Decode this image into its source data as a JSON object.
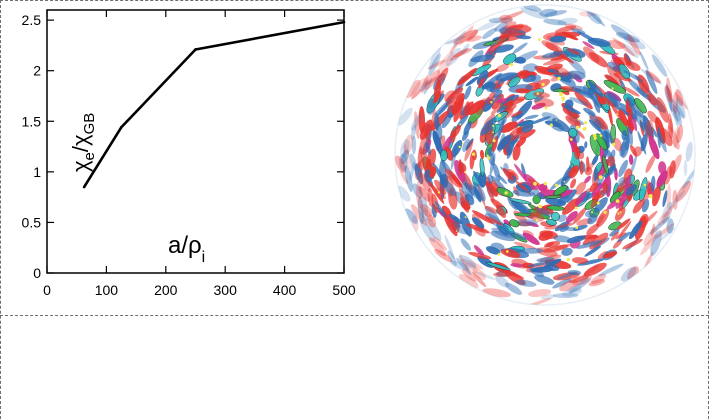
{
  "chart_data": {
    "type": "line",
    "title": "",
    "xlabel": "",
    "ylabel": "",
    "xlim": [
      0,
      500
    ],
    "ylim": [
      0,
      2.6
    ],
    "x": [
      62.5,
      125,
      250,
      500
    ],
    "series": [
      {
        "name": "chi_e / chi_GB",
        "values": [
          0.85,
          1.44,
          2.21,
          2.48
        ]
      }
    ],
    "x_ticks": [
      "0",
      "100",
      "200",
      "300",
      "400",
      "500"
    ],
    "y_ticks": [
      "0",
      "0.5",
      "1",
      "1.5",
      "2",
      "2.5"
    ],
    "grid": false,
    "legend": "none",
    "ylabel_parts": {
      "symbol": "χ",
      "numerator_sub": "e",
      "slash": "/",
      "denominator_sub": "GB"
    },
    "annotation_parts": {
      "text": "a/ρ",
      "sub": "i"
    }
  },
  "panel_image": {
    "name": "turbulence-cross-section",
    "colors": {
      "positive": "#e8332f",
      "negative": "#2e6db5",
      "high_positive": "#d1338e",
      "high_negative": "#3bb34a",
      "extreme": "#2ebfbf",
      "peak": "#f3e94a"
    }
  }
}
